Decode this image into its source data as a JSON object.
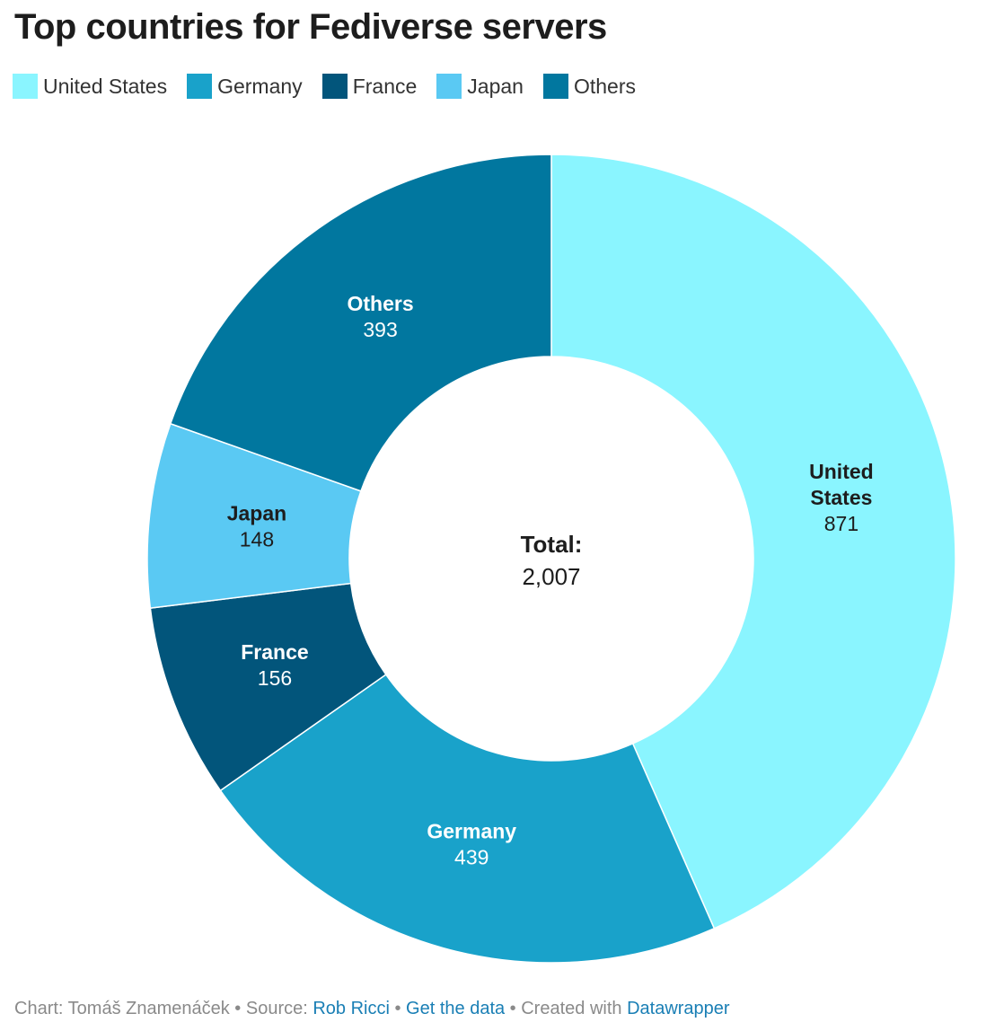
{
  "chart_data": {
    "type": "pie",
    "variant": "donut",
    "title": "Top countries for Fediverse servers",
    "categories": [
      "United States",
      "Germany",
      "France",
      "Japan",
      "Others"
    ],
    "values": [
      871,
      439,
      156,
      148,
      393
    ],
    "slice_labels": [
      [
        "United",
        "States"
      ],
      [
        "Germany"
      ],
      [
        "France"
      ],
      [
        "Japan"
      ],
      [
        "Others"
      ]
    ],
    "colors": [
      "#8af5ff",
      "#19a2ca",
      "#02557b",
      "#5ac9f3",
      "#01779f"
    ],
    "label_colors": [
      "#1d1d1d",
      "#ffffff",
      "#ffffff",
      "#1d1d1d",
      "#ffffff"
    ],
    "value_labels": [
      "871",
      "439",
      "156",
      "148",
      "393"
    ],
    "center": {
      "label": "Total:",
      "value": "2,007"
    },
    "legend_placement": "top-left"
  },
  "footer": {
    "chart_prefix": "Chart: Tomáš Znamenáček • Source: ",
    "source_link": "Rob Ricci",
    "sep1": " • ",
    "data_link": "Get the data",
    "sep2": " • Created with ",
    "tool_link": "Datawrapper"
  }
}
